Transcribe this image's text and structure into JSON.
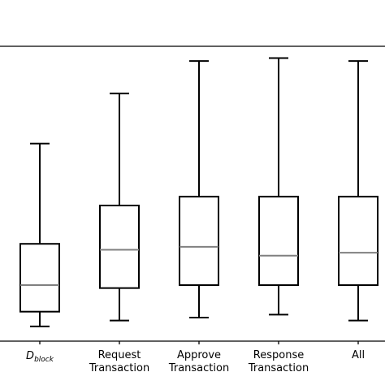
{
  "chart_data": {
    "type": "box",
    "categories": [
      {
        "main": "D",
        "sub": "block",
        "lines": []
      },
      {
        "lines": [
          "Request",
          "Transaction"
        ]
      },
      {
        "lines": [
          "Approve",
          "Transaction"
        ]
      },
      {
        "lines": [
          "Response",
          "Transaction"
        ]
      },
      {
        "lines": [
          "All"
        ]
      }
    ],
    "boxes": [
      {
        "whisker_low": 0.05,
        "q1": 0.1,
        "median": 0.19,
        "q3": 0.33,
        "whisker_high": 0.67
      },
      {
        "whisker_low": 0.07,
        "q1": 0.18,
        "median": 0.31,
        "q3": 0.46,
        "whisker_high": 0.84
      },
      {
        "whisker_low": 0.08,
        "q1": 0.19,
        "median": 0.32,
        "q3": 0.49,
        "whisker_high": 0.95
      },
      {
        "whisker_low": 0.09,
        "q1": 0.19,
        "median": 0.29,
        "q3": 0.49,
        "whisker_high": 0.96
      },
      {
        "whisker_low": 0.07,
        "q1": 0.19,
        "median": 0.3,
        "q3": 0.49,
        "whisker_high": 0.95
      }
    ],
    "ylim": [
      0,
      1
    ],
    "title": "",
    "xlabel": "",
    "ylabel": "",
    "grid": false,
    "colors": {
      "box": "#000000",
      "median": "#808080"
    }
  }
}
